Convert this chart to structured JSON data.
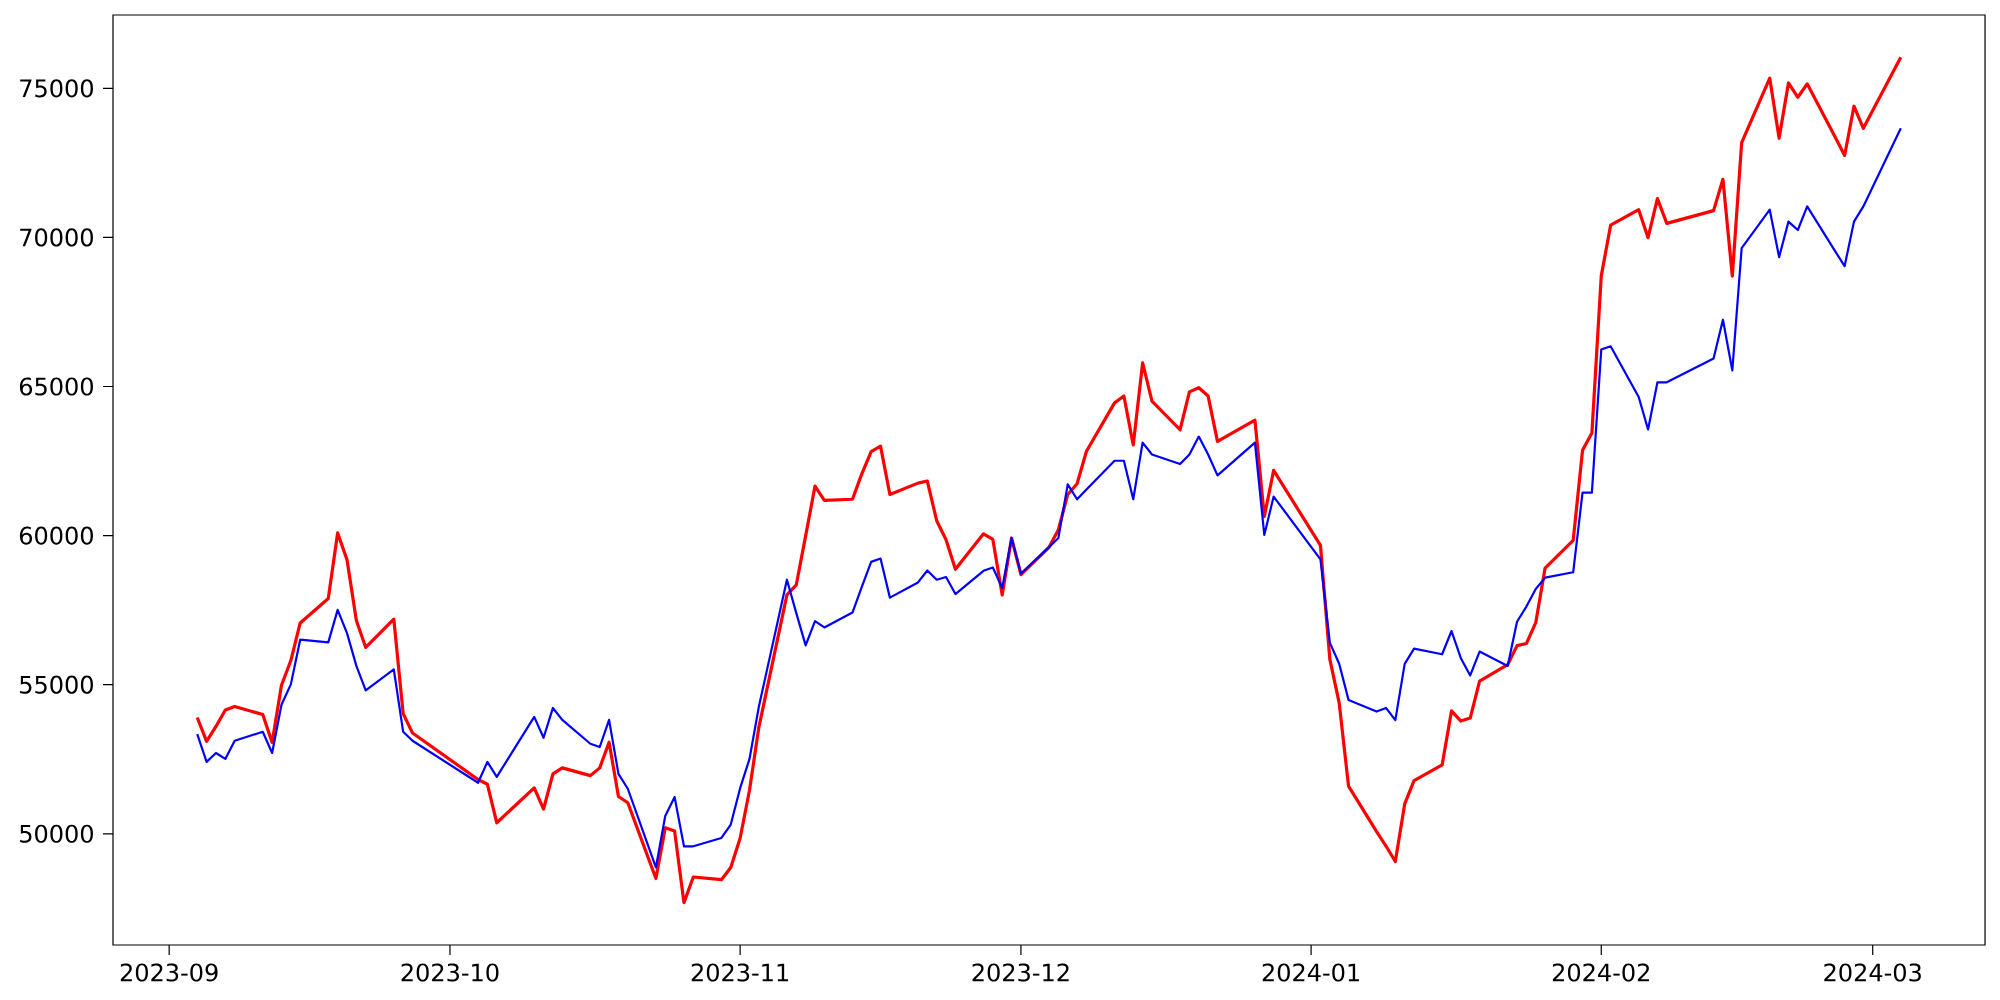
{
  "chart_data": {
    "type": "line",
    "x": [
      "2023-09-04",
      "2023-09-05",
      "2023-09-06",
      "2023-09-07",
      "2023-09-08",
      "2023-09-11",
      "2023-09-12",
      "2023-09-13",
      "2023-09-14",
      "2023-09-15",
      "2023-09-18",
      "2023-09-19",
      "2023-09-20",
      "2023-09-21",
      "2023-09-22",
      "2023-09-25",
      "2023-09-26",
      "2023-09-27",
      "2023-10-04",
      "2023-10-05",
      "2023-10-06",
      "2023-10-10",
      "2023-10-11",
      "2023-10-12",
      "2023-10-13",
      "2023-10-16",
      "2023-10-17",
      "2023-10-18",
      "2023-10-19",
      "2023-10-20",
      "2023-10-23",
      "2023-10-24",
      "2023-10-25",
      "2023-10-26",
      "2023-10-27",
      "2023-10-30",
      "2023-10-31",
      "2023-11-01",
      "2023-11-02",
      "2023-11-03",
      "2023-11-06",
      "2023-11-07",
      "2023-11-08",
      "2023-11-09",
      "2023-11-10",
      "2023-11-13",
      "2023-11-14",
      "2023-11-15",
      "2023-11-16",
      "2023-11-17",
      "2023-11-20",
      "2023-11-21",
      "2023-11-22",
      "2023-11-23",
      "2023-11-24",
      "2023-11-27",
      "2023-11-28",
      "2023-11-29",
      "2023-11-30",
      "2023-12-01",
      "2023-12-04",
      "2023-12-05",
      "2023-12-06",
      "2023-12-07",
      "2023-12-08",
      "2023-12-11",
      "2023-12-12",
      "2023-12-13",
      "2023-12-14",
      "2023-12-15",
      "2023-12-18",
      "2023-12-19",
      "2023-12-20",
      "2023-12-21",
      "2023-12-22",
      "2023-12-26",
      "2023-12-27",
      "2023-12-28",
      "2024-01-02",
      "2024-01-03",
      "2024-01-04",
      "2024-01-05",
      "2024-01-08",
      "2024-01-09",
      "2024-01-10",
      "2024-01-11",
      "2024-01-12",
      "2024-01-15",
      "2024-01-16",
      "2024-01-17",
      "2024-01-18",
      "2024-01-19",
      "2024-01-22",
      "2024-01-23",
      "2024-01-24",
      "2024-01-25",
      "2024-01-26",
      "2024-01-29",
      "2024-01-30",
      "2024-01-31",
      "2024-02-01",
      "2024-02-02",
      "2024-02-05",
      "2024-02-06",
      "2024-02-07",
      "2024-02-08",
      "2024-02-13",
      "2024-02-14",
      "2024-02-15",
      "2024-02-16",
      "2024-02-19",
      "2024-02-20",
      "2024-02-21",
      "2024-02-22",
      "2024-02-23",
      "2024-02-26",
      "2024-02-27",
      "2024-02-28",
      "2024-02-29",
      "2024-03-04"
    ],
    "series": [
      {
        "color": "#ff0000",
        "values": [
          53900,
          53100,
          53600,
          54150,
          54270,
          54000,
          53060,
          54980,
          55810,
          57070,
          57890,
          60090,
          59190,
          57150,
          56250,
          57200,
          54030,
          53380,
          51820,
          51660,
          50370,
          51540,
          50830,
          52010,
          52210,
          51950,
          52210,
          53070,
          51250,
          51040,
          48500,
          50200,
          50090,
          47690,
          48550,
          48460,
          48870,
          49850,
          51460,
          53570,
          58010,
          58350,
          59990,
          61660,
          61180,
          61220,
          62070,
          62820,
          63000,
          61380,
          61760,
          61830,
          60500,
          59860,
          58870,
          60060,
          59870,
          58010,
          59920,
          58690,
          59610,
          60200,
          61380,
          61740,
          62830,
          64450,
          64680,
          63040,
          65790,
          64510,
          63550,
          64820,
          64960,
          64680,
          63160,
          63870,
          60640,
          62190,
          59670,
          55860,
          54390,
          51600,
          50070,
          49590,
          49070,
          51000,
          51780,
          52310,
          54120,
          53780,
          53880,
          55120,
          55670,
          56310,
          56380,
          57080,
          58910,
          59840,
          62860,
          63440,
          68710,
          70410,
          70930,
          69990,
          71300,
          70470,
          70900,
          71950,
          68700,
          73180,
          75340,
          73330,
          75180,
          74700,
          75150,
          73360,
          72750,
          74400,
          73660,
          76040
        ]
      },
      {
        "color": "#0000ff",
        "values": [
          53340,
          52410,
          52710,
          52510,
          53120,
          53420,
          52710,
          54330,
          55010,
          56510,
          56420,
          57510,
          56730,
          55630,
          54810,
          55510,
          53420,
          53120,
          51710,
          52410,
          51910,
          53920,
          53220,
          54220,
          53820,
          53020,
          52910,
          53820,
          52010,
          51510,
          48870,
          50600,
          51230,
          49580,
          49580,
          49860,
          50310,
          51530,
          52510,
          54260,
          58520,
          57400,
          56320,
          57130,
          56920,
          57420,
          58280,
          59120,
          59230,
          57920,
          58430,
          58830,
          58520,
          58610,
          58040,
          58820,
          58930,
          58240,
          59920,
          58730,
          59610,
          59920,
          61720,
          61220,
          61550,
          62510,
          62510,
          61220,
          63120,
          62720,
          62400,
          62720,
          63320,
          62720,
          62020,
          63120,
          60020,
          61310,
          59200,
          56410,
          55700,
          54490,
          54100,
          54220,
          53810,
          55700,
          56210,
          56020,
          56800,
          55890,
          55310,
          56110,
          55630,
          57110,
          57620,
          58210,
          58590,
          58770,
          61440,
          61440,
          66240,
          66350,
          64650,
          63560,
          65140,
          65140,
          65940,
          67240,
          65540,
          69640,
          70930,
          69340,
          70530,
          70250,
          71040,
          69530,
          69040,
          70530,
          71040,
          73660
        ]
      }
    ],
    "xlim": [
      "2023-08-26",
      "2024-03-13"
    ],
    "ylim": [
      46270,
      77460
    ],
    "xticks": [
      {
        "value": "2023-09-01",
        "label": "2023-09"
      },
      {
        "value": "2023-10-01",
        "label": "2023-10"
      },
      {
        "value": "2023-11-01",
        "label": "2023-11"
      },
      {
        "value": "2023-12-01",
        "label": "2023-12"
      },
      {
        "value": "2024-01-01",
        "label": "2024-01"
      },
      {
        "value": "2024-02-01",
        "label": "2024-02"
      },
      {
        "value": "2024-03-01",
        "label": "2024-03"
      }
    ],
    "yticks": [
      50000,
      55000,
      60000,
      65000,
      70000,
      75000
    ]
  }
}
